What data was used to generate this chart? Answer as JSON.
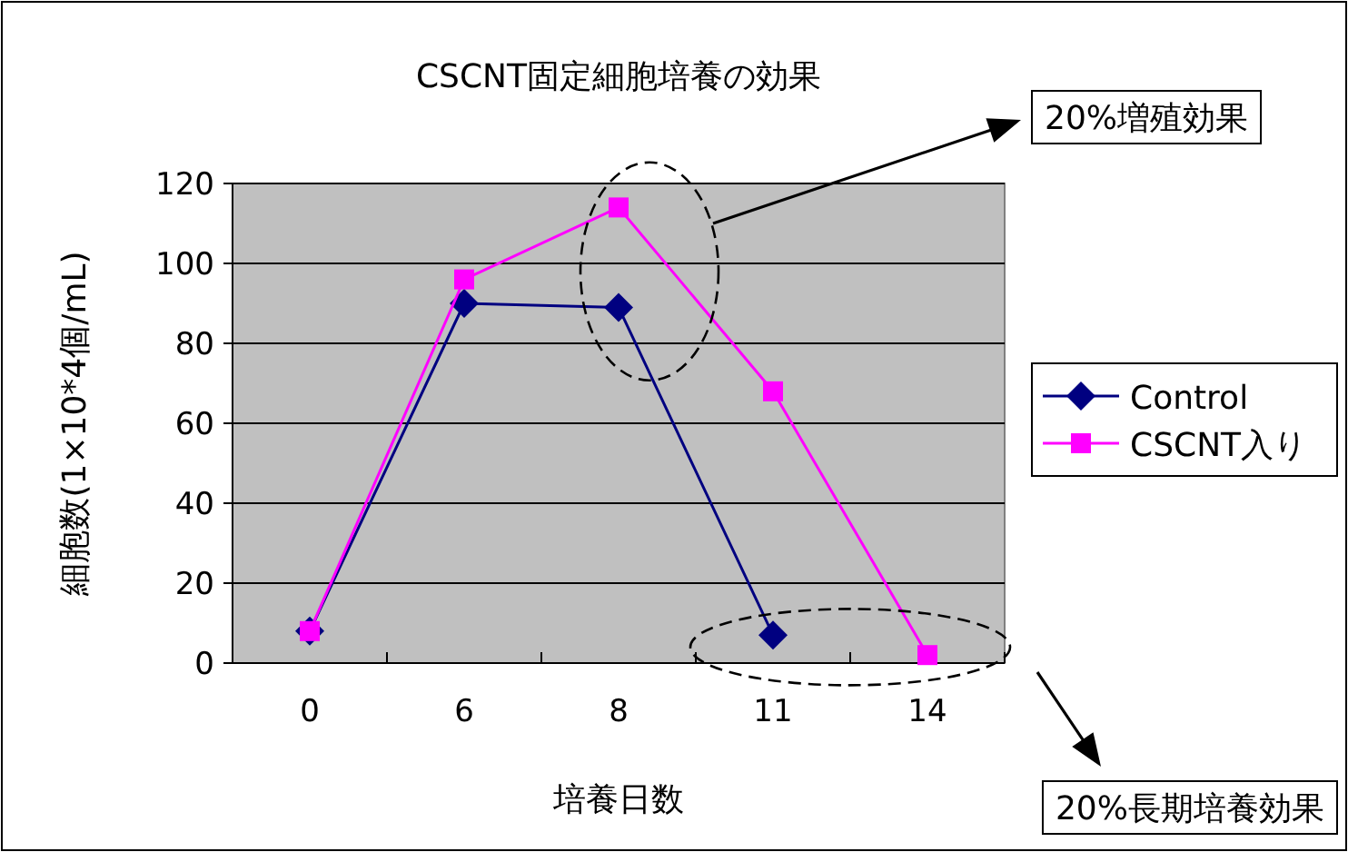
{
  "chart_data": {
    "type": "line",
    "title": "CSCNT固定細胞培養の効果",
    "xlabel": "培養日数",
    "ylabel": "細胞数(1×10*4個/mL)",
    "categories": [
      "0",
      "6",
      "8",
      "11",
      "14"
    ],
    "series": [
      {
        "name": "Control",
        "color": "#000080",
        "marker": "diamond",
        "values": [
          8,
          90,
          89,
          7,
          null
        ]
      },
      {
        "name": "CSCNT入り",
        "color": "#ff00ff",
        "marker": "square",
        "values": [
          8,
          96,
          114,
          68,
          2
        ]
      }
    ],
    "ylim": [
      0,
      120
    ],
    "yticks": [
      0,
      20,
      40,
      60,
      80,
      100,
      120
    ],
    "grid": "y",
    "legend": "right",
    "annotations": [
      "20%増殖効果",
      "20%長期培養効果"
    ]
  }
}
